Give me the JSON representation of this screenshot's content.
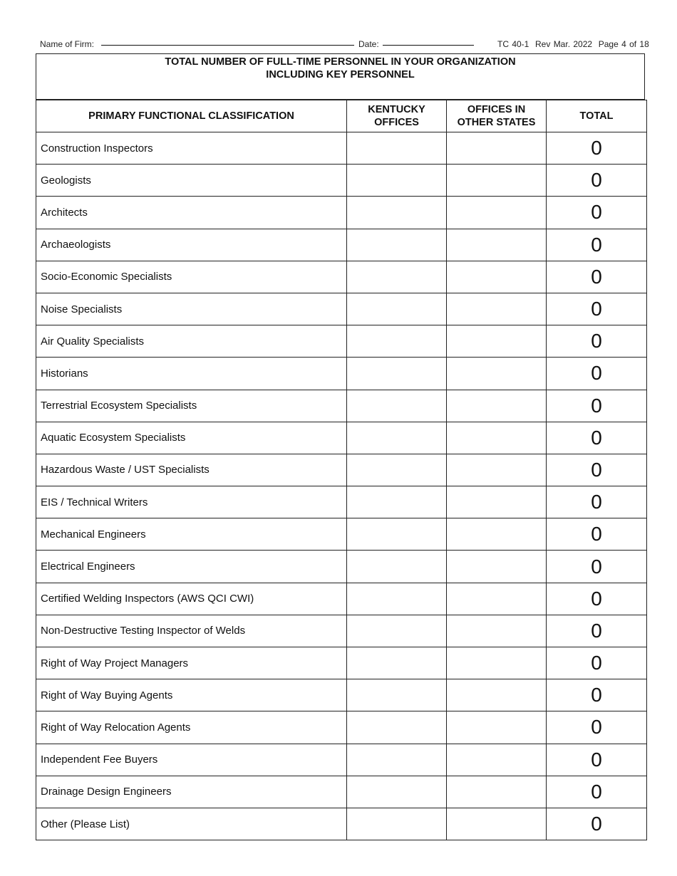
{
  "header": {
    "firm_label": "Name of Firm:",
    "firm_value": "",
    "date_label": "Date:",
    "date_value": "",
    "form_id": "TC 40-1  Rev Mar. 2022  Page 4 of 18"
  },
  "title": {
    "line1": "TOTAL NUMBER OF FULL-TIME PERSONNEL IN YOUR ORGANIZATION",
    "line2": "INCLUDING KEY PERSONNEL"
  },
  "columns": {
    "classification": "PRIMARY FUNCTIONAL CLASSIFICATION",
    "kentucky_1": "KENTUCKY",
    "kentucky_2": "OFFICES",
    "other_1": "OFFICES IN",
    "other_2": "OTHER STATES",
    "total": "TOTAL"
  },
  "rows": [
    {
      "label": "Construction Inspectors",
      "kentucky": "",
      "other": "",
      "total": "0"
    },
    {
      "label": "Geologists",
      "kentucky": "",
      "other": "",
      "total": "0"
    },
    {
      "label": "Architects",
      "kentucky": "",
      "other": "",
      "total": "0"
    },
    {
      "label": "Archaeologists",
      "kentucky": "",
      "other": "",
      "total": "0"
    },
    {
      "label": "Socio-Economic Specialists",
      "kentucky": "",
      "other": "",
      "total": "0"
    },
    {
      "label": "Noise Specialists",
      "kentucky": "",
      "other": "",
      "total": "0"
    },
    {
      "label": "Air Quality Specialists",
      "kentucky": "",
      "other": "",
      "total": "0"
    },
    {
      "label": "Historians",
      "kentucky": "",
      "other": "",
      "total": "0"
    },
    {
      "label": "Terrestrial Ecosystem Specialists",
      "kentucky": "",
      "other": "",
      "total": "0"
    },
    {
      "label": "Aquatic Ecosystem Specialists",
      "kentucky": "",
      "other": "",
      "total": "0"
    },
    {
      "label": "Hazardous Waste / UST Specialists",
      "kentucky": "",
      "other": "",
      "total": "0"
    },
    {
      "label": "EIS / Technical Writers",
      "kentucky": "",
      "other": "",
      "total": "0"
    },
    {
      "label": "Mechanical Engineers",
      "kentucky": "",
      "other": "",
      "total": "0"
    },
    {
      "label": "Electrical Engineers",
      "kentucky": "",
      "other": "",
      "total": "0"
    },
    {
      "label": "Certified Welding Inspectors (AWS QCI CWI)",
      "kentucky": "",
      "other": "",
      "total": "0"
    },
    {
      "label": "Non-Destructive Testing Inspector of Welds",
      "kentucky": "",
      "other": "",
      "total": "0"
    },
    {
      "label": "Right of Way Project Managers",
      "kentucky": "",
      "other": "",
      "total": "0"
    },
    {
      "label": "Right of Way Buying Agents",
      "kentucky": "",
      "other": "",
      "total": "0"
    },
    {
      "label": "Right of Way Relocation Agents",
      "kentucky": "",
      "other": "",
      "total": "0"
    },
    {
      "label": "Independent Fee Buyers",
      "kentucky": "",
      "other": "",
      "total": "0"
    },
    {
      "label": "Drainage Design Engineers",
      "kentucky": "",
      "other": "",
      "total": "0"
    },
    {
      "label": "Other (Please List)",
      "kentucky": "",
      "other": "",
      "total": "0"
    }
  ]
}
